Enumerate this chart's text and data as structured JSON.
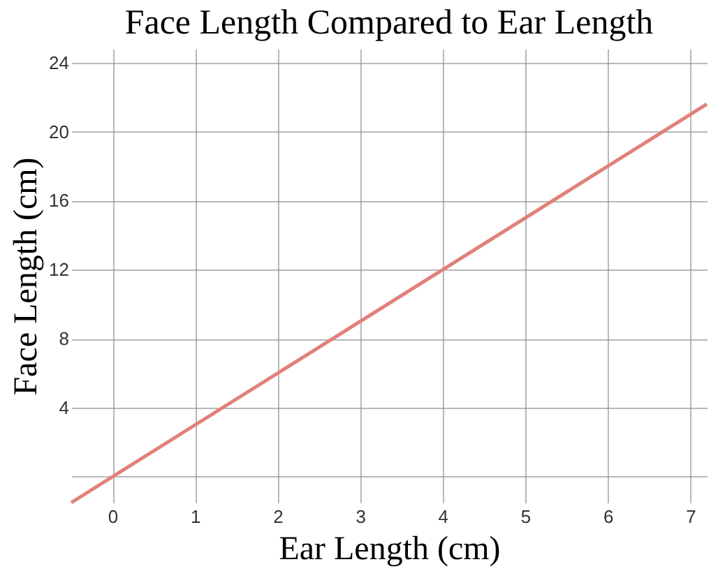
{
  "chart_data": {
    "type": "line",
    "title": "Face Length Compared to Ear Length",
    "xlabel": "Ear Length (cm)",
    "ylabel": "Face Length (cm)",
    "x": [
      -0.5,
      0,
      7.2
    ],
    "series": [
      {
        "color": "#e0817a",
        "values": [
          -1.5,
          0,
          21.6
        ]
      }
    ],
    "xlim": [
      -0.5,
      7.2
    ],
    "ylim": [
      -1.5,
      24.8
    ],
    "xticks": [
      0,
      1,
      2,
      3,
      4,
      5,
      6,
      7
    ],
    "yticks": [
      {
        "value": 0,
        "label": null
      },
      4,
      8,
      12,
      16,
      20,
      24
    ],
    "grid": true,
    "legend": false,
    "marker": "none",
    "line_style": "solid"
  }
}
